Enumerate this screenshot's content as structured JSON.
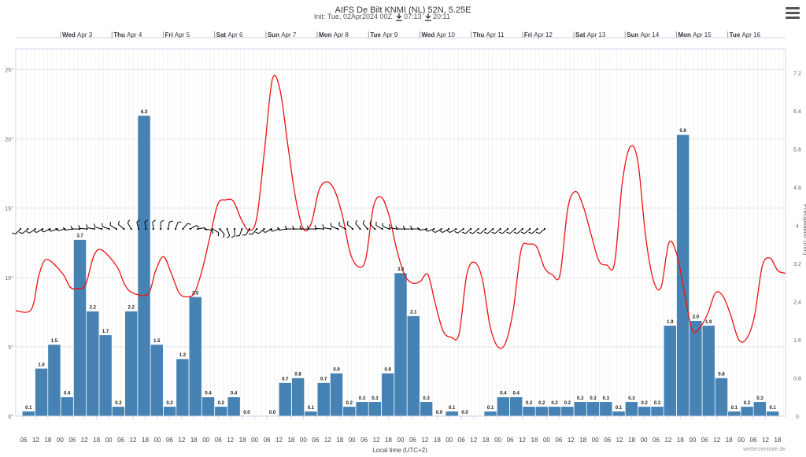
{
  "chart_data": {
    "type": "bar",
    "title": "AIFS De Bilt KNMI (NL) 52N, 5.25E",
    "subtitle": "Init: Tue, 02Apr2024 00Z",
    "sunrise": "07:13",
    "sunset": "20:11",
    "xlabel": "Local time (UTC+2)",
    "y_right_label": "Precipitation (mm)",
    "credit": "wetterzentrale.de",
    "x_tick_labels": [
      "06",
      "12",
      "18",
      "00",
      "06",
      "12",
      "18",
      "00",
      "06",
      "12",
      "18",
      "00",
      "06",
      "12",
      "18",
      "00",
      "06",
      "12",
      "18",
      "00",
      "06",
      "12",
      "18",
      "00",
      "06",
      "12",
      "18",
      "00",
      "06",
      "12",
      "18",
      "00",
      "06",
      "12",
      "18",
      "00",
      "06",
      "12",
      "18",
      "00",
      "06",
      "12",
      "18",
      "00",
      "06",
      "12",
      "18",
      "00",
      "06",
      "12",
      "18",
      "00",
      "06",
      "12",
      "18",
      "00",
      "06",
      "12",
      "18",
      "00",
      "06",
      "12",
      "18"
    ],
    "day_labels": [
      {
        "day": "Wed",
        "date": "Apr 3"
      },
      {
        "day": "Thu",
        "date": "Apr 4"
      },
      {
        "day": "Fri",
        "date": "Apr 5"
      },
      {
        "day": "Sat",
        "date": "Apr 6"
      },
      {
        "day": "Sun",
        "date": "Apr 7"
      },
      {
        "day": "Mon",
        "date": "Apr 8"
      },
      {
        "day": "Tue",
        "date": "Apr 9"
      },
      {
        "day": "Wed",
        "date": "Apr 10"
      },
      {
        "day": "Thu",
        "date": "Apr 11"
      },
      {
        "day": "Fri",
        "date": "Apr 12"
      },
      {
        "day": "Sat",
        "date": "Apr 13"
      },
      {
        "day": "Sun",
        "date": "Apr 14"
      },
      {
        "day": "Mon",
        "date": "Apr 15"
      },
      {
        "day": "Tue",
        "date": "Apr 16"
      }
    ],
    "y_left": {
      "ticks": [
        "0°",
        "5°",
        "10°",
        "15°",
        "20°",
        "25°"
      ],
      "range": [
        0,
        26.5
      ]
    },
    "y_right": {
      "ticks": [
        "0",
        "0.8",
        "1.6",
        "2.4",
        "3.2",
        "4",
        "4.8",
        "5.6",
        "6.4",
        "7.2"
      ],
      "range": [
        0,
        7.7
      ]
    },
    "series": [
      {
        "type": "bar",
        "color": "#4682b4",
        "values": [
          0.1,
          1.0,
          1.5,
          0.4,
          3.7,
          2.2,
          1.7,
          0.2,
          2.2,
          6.3,
          1.5,
          0.2,
          1.2,
          2.5,
          0.4,
          0.2,
          0.4,
          0.0,
          null,
          0.0,
          0.7,
          0.8,
          0.1,
          0.7,
          0.9,
          0.2,
          0.3,
          0.3,
          0.9,
          3.0,
          2.1,
          0.3,
          0.0,
          0.1,
          0.0,
          null,
          0.1,
          0.4,
          0.4,
          0.2,
          0.2,
          0.2,
          0.2,
          0.3,
          0.3,
          0.3,
          0.1,
          0.3,
          0.2,
          0.2,
          1.9,
          5.9,
          2.0,
          1.9,
          0.8,
          0.1,
          0.2,
          0.3,
          0.1
        ],
        "labels": [
          "0.1",
          "1.0",
          "1.5",
          "0.4",
          "3.7",
          "2.2",
          "1.7",
          "0.2",
          "2.2",
          "6.3",
          "1.5",
          "0.2",
          "1.2",
          "2.5",
          "0.4",
          "0.2",
          "0.4",
          "0.0",
          "",
          "0.0",
          "0.7",
          "0.8",
          "0.1",
          "0.7",
          "0.9",
          "0.2",
          "0.3",
          "0.3",
          "0.9",
          "3.0",
          "2.1",
          "0.3",
          "0.0",
          "0.1",
          "0.0",
          "",
          "0.1",
          "0.4",
          "0.4",
          "0.2",
          "0.2",
          "0.2",
          "0.2",
          "0.3",
          "0.3",
          "0.3",
          "0.1",
          "0.3",
          "0.2",
          "0.2",
          "1.9",
          "5.9",
          "2.0",
          "1.9",
          "0.8",
          "0.1",
          "0.2",
          "0.3",
          "0.1"
        ]
      },
      {
        "type": "line",
        "color": "#ee1111",
        "values": [
          [
            0,
            7.6
          ],
          [
            2,
            7.7
          ],
          [
            3,
            10.2
          ],
          [
            4,
            11.3
          ],
          [
            6,
            10.3
          ],
          [
            7,
            9.3
          ],
          [
            8,
            9.2
          ],
          [
            9,
            9.5
          ],
          [
            10,
            11.5
          ],
          [
            11,
            12.0
          ],
          [
            13,
            10.8
          ],
          [
            14,
            9.5
          ],
          [
            15,
            8.9
          ],
          [
            17,
            8.8
          ],
          [
            18,
            10.5
          ],
          [
            19,
            11.5
          ],
          [
            20,
            10.3
          ],
          [
            21,
            8.9
          ],
          [
            22,
            8.6
          ],
          [
            23,
            8.9
          ],
          [
            24,
            10.6
          ],
          [
            25,
            13.0
          ],
          [
            26,
            15.3
          ],
          [
            27,
            15.6
          ],
          [
            28,
            15.5
          ],
          [
            29,
            14.2
          ],
          [
            30,
            13.4
          ],
          [
            31,
            14.3
          ],
          [
            32,
            19.2
          ],
          [
            33,
            24.3
          ],
          [
            34,
            23.5
          ],
          [
            35,
            19.5
          ],
          [
            36,
            15.7
          ],
          [
            37,
            13.5
          ],
          [
            38,
            13.9
          ],
          [
            39,
            16.3
          ],
          [
            40,
            16.9
          ],
          [
            41,
            16.3
          ],
          [
            42,
            14.5
          ],
          [
            43,
            11.8
          ],
          [
            44,
            10.8
          ],
          [
            45,
            11.3
          ],
          [
            46,
            15.1
          ],
          [
            47,
            15.8
          ],
          [
            48,
            14.5
          ],
          [
            49,
            12.0
          ],
          [
            50,
            10.2
          ],
          [
            51,
            9.6
          ],
          [
            52,
            9.7
          ],
          [
            53,
            10.2
          ],
          [
            54,
            8.0
          ],
          [
            55,
            6.1
          ],
          [
            56,
            5.7
          ],
          [
            57,
            5.9
          ],
          [
            58,
            10.2
          ],
          [
            59,
            11.1
          ],
          [
            60,
            9.9
          ],
          [
            61,
            6.5
          ],
          [
            62,
            5.0
          ],
          [
            63,
            5.3
          ],
          [
            64,
            7.7
          ],
          [
            65,
            12.0
          ],
          [
            66,
            12.4
          ],
          [
            67,
            12.2
          ],
          [
            68,
            10.7
          ],
          [
            69,
            10.2
          ],
          [
            70,
            10.2
          ],
          [
            71,
            15.0
          ],
          [
            72,
            16.2
          ],
          [
            73,
            15.1
          ],
          [
            74,
            13.1
          ],
          [
            75,
            11.2
          ],
          [
            76,
            10.9
          ],
          [
            77,
            11.0
          ],
          [
            78,
            16.8
          ],
          [
            79,
            19.4
          ],
          [
            80,
            18.4
          ],
          [
            81,
            13.0
          ],
          [
            82,
            9.8
          ],
          [
            83,
            9.3
          ],
          [
            84,
            12.5
          ],
          [
            85,
            11.7
          ],
          [
            86,
            8.9
          ],
          [
            87,
            6.2
          ],
          [
            88,
            6.4
          ],
          [
            89,
            7.4
          ],
          [
            90,
            8.9
          ],
          [
            91,
            8.6
          ],
          [
            92,
            7.2
          ],
          [
            93,
            5.5
          ],
          [
            94,
            5.6
          ],
          [
            95,
            7.2
          ],
          [
            96,
            10.8
          ],
          [
            97,
            11.4
          ],
          [
            98,
            10.5
          ],
          [
            99,
            10.3
          ]
        ]
      }
    ],
    "wind_barbs": {
      "color": "#000000",
      "series_y": 13.5,
      "directions_deg": [
        225,
        230,
        235,
        240,
        245,
        250,
        255,
        260,
        270,
        275,
        280,
        285,
        290,
        300,
        310,
        330,
        345,
        350,
        355,
        0,
        10,
        20,
        40,
        60,
        80,
        100,
        120,
        140,
        160,
        180,
        200,
        210,
        220,
        230,
        240,
        250,
        260,
        270,
        270,
        270,
        270,
        275,
        280,
        290,
        300,
        310,
        320,
        320,
        315,
        300,
        290,
        280,
        270,
        270,
        270,
        260,
        250,
        240,
        240,
        240,
        235,
        230,
        230,
        230,
        230,
        230,
        230,
        230,
        230,
        230,
        230,
        230
      ]
    }
  },
  "ui": {
    "menu_icon": "hamburger-menu-icon"
  }
}
